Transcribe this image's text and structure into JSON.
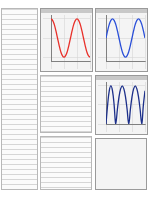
{
  "chart_data": [
    {
      "type": "line",
      "color": "#e8302a",
      "grid": true,
      "tick_labels": false,
      "xlim": [
        0,
        24
      ],
      "xticks": [
        0,
        8,
        16,
        24
      ],
      "ylim": [
        -1.2,
        1.2
      ],
      "yticks": [
        -1,
        0,
        1
      ],
      "x": [
        0,
        1,
        2,
        3,
        4,
        5,
        6,
        7,
        8,
        9,
        10,
        11,
        12,
        13,
        14,
        15,
        16,
        17,
        18,
        19,
        20,
        21,
        22,
        23,
        24
      ],
      "values": [
        1,
        0.92,
        0.71,
        0.38,
        0,
        -0.38,
        -0.71,
        -0.92,
        -1,
        -0.92,
        -0.71,
        -0.38,
        0,
        0.38,
        0.71,
        0.92,
        1,
        0.92,
        0.71,
        0.38,
        0,
        -0.38,
        -0.71,
        -0.92,
        -1
      ]
    },
    {
      "type": "line",
      "color": "#2a4fd8",
      "grid": true,
      "tick_labels": false,
      "xlim": [
        0,
        24
      ],
      "xticks": [
        0,
        8,
        16,
        24
      ],
      "ylim": [
        -1.2,
        1.2
      ],
      "yticks": [
        -1,
        0,
        1
      ],
      "x": [
        0,
        1,
        2,
        3,
        4,
        5,
        6,
        7,
        8,
        9,
        10,
        11,
        12,
        13,
        14,
        15,
        16,
        17,
        18,
        19,
        20,
        21,
        22,
        23,
        24
      ],
      "values": [
        0,
        0.38,
        0.71,
        0.92,
        1,
        0.92,
        0.71,
        0.38,
        0,
        -0.38,
        -0.71,
        -0.92,
        -1,
        -0.92,
        -0.71,
        -0.38,
        0,
        0.38,
        0.71,
        0.92,
        1,
        0.92,
        0.71,
        0.38,
        0
      ]
    },
    {
      "type": "line",
      "color": "#1c2f8a",
      "grid": true,
      "tick_labels": false,
      "xlim": [
        0,
        24
      ],
      "xticks": [
        0,
        8,
        16,
        24
      ],
      "ylim": [
        0,
        1.1
      ],
      "yticks": [
        0,
        0.5,
        1
      ],
      "x": [
        0,
        1,
        2,
        3,
        4,
        5,
        6,
        7,
        8,
        9,
        10,
        11,
        12,
        13,
        14,
        15,
        16,
        17,
        18,
        19,
        20,
        21,
        22,
        23,
        24
      ],
      "values": [
        0,
        0.5,
        0.87,
        1,
        0.87,
        0.5,
        0,
        0.38,
        0.71,
        0.92,
        1,
        0.92,
        0.71,
        0.38,
        0,
        0.38,
        0.71,
        0.92,
        1,
        0.92,
        0.71,
        0.38,
        0,
        0.5,
        0.87
      ]
    }
  ]
}
